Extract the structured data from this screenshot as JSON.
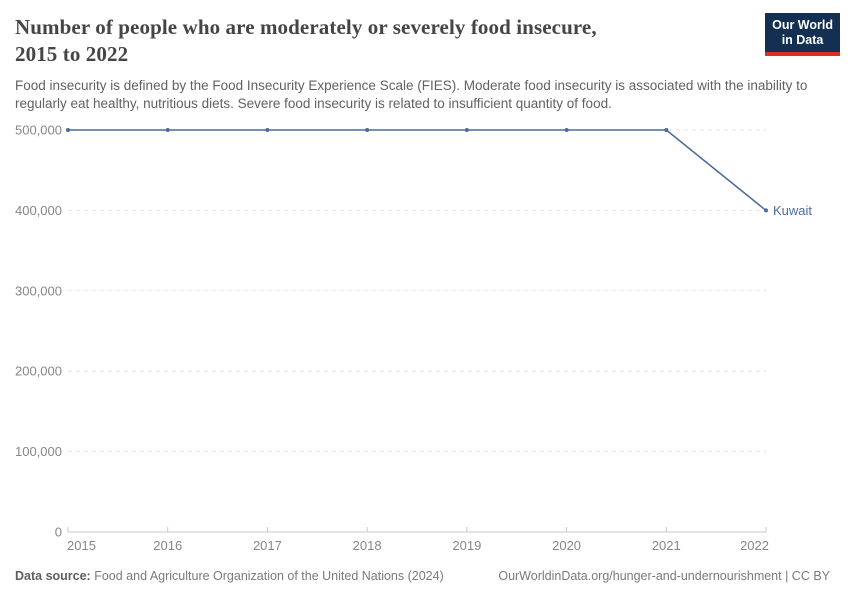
{
  "header": {
    "title": "Number of people who are moderately or severely food insecure, 2015 to 2022",
    "title_lines": [
      "Number of people who are moderately or severely food insecure,",
      "2015 to 2022"
    ],
    "subtitle": "Food insecurity is defined by the Food Insecurity Experience Scale (FIES). Moderate food insecurity is associated with the inability to regularly eat healthy, nutritious diets. Severe food insecurity is related to insufficient quantity of food.",
    "logo": {
      "line1": "Our World",
      "line2": "in Data",
      "bg_color": "#132f51",
      "stripe_color": "#dc2f21"
    }
  },
  "chart_data": {
    "type": "line",
    "title": "Number of people who are moderately or severely food insecure, 2015 to 2022",
    "x": [
      2015,
      2016,
      2017,
      2018,
      2019,
      2020,
      2021,
      2022
    ],
    "xtick_labels": [
      "2015",
      "2016",
      "2017",
      "2018",
      "2019",
      "2020",
      "2021",
      "2022"
    ],
    "series": [
      {
        "name": "Kuwait",
        "color": "#4c6a9c",
        "values": [
          500000,
          500000,
          500000,
          500000,
          500000,
          500000,
          500000,
          400000
        ]
      }
    ],
    "xlabel": "",
    "ylabel": "",
    "ylim": [
      0,
      500000
    ],
    "yticks": [
      0,
      100000,
      200000,
      300000,
      400000,
      500000
    ],
    "ytick_labels": [
      "0",
      "100,000",
      "200,000",
      "300,000",
      "400,000",
      "500,000"
    ],
    "grid": "horizontal-dashed",
    "legend_position": "end-of-line",
    "markers": true,
    "colors": {
      "gridline": "#e3e3e3",
      "axis": "#c9c9c9",
      "tick_label": "#878787",
      "end_label": "#4d6ba3"
    }
  },
  "footer": {
    "datasource_label": "Data source:",
    "datasource_text": "Food and Agriculture Organization of the United Nations (2024)",
    "right_text": "OurWorldinData.org/hunger-and-undernourishment | CC BY"
  }
}
